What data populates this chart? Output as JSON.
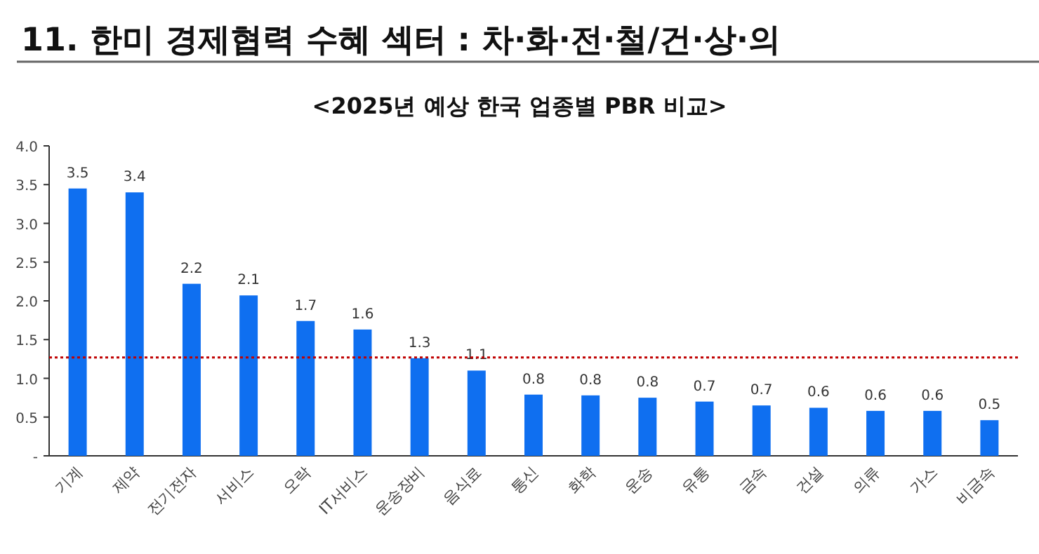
{
  "chart_data": {
    "type": "bar",
    "title": "11. 한미 경제협력 수혜 섹터 : 차·화·전·철/건·상·의",
    "subtitle": "<2025년 예상 한국 업종별 PBR 비교>",
    "categories": [
      "기계",
      "제약",
      "전기전자",
      "서비스",
      "오락",
      "IT서비스",
      "운송장비",
      "음식료",
      "통신",
      "화학",
      "운송",
      "유통",
      "금속",
      "건설",
      "의류",
      "가스",
      "비금속"
    ],
    "values": [
      3.45,
      3.4,
      2.22,
      2.07,
      1.74,
      1.63,
      1.26,
      1.1,
      0.79,
      0.78,
      0.75,
      0.7,
      0.65,
      0.62,
      0.58,
      0.58,
      0.46
    ],
    "value_labels": [
      "3.5",
      "3.4",
      "2.2",
      "2.1",
      "1.7",
      "1.6",
      "1.3",
      "1.1",
      "0.8",
      "0.8",
      "0.8",
      "0.7",
      "0.7",
      "0.6",
      "0.6",
      "0.6",
      "0.5"
    ],
    "color": "#0f6ff0",
    "ylim": [
      0,
      4
    ],
    "yticks": [
      {
        "value": 0,
        "label": "-"
      },
      {
        "value": 0.5,
        "label": "0.5"
      },
      {
        "value": 1,
        "label": "1.0"
      },
      {
        "value": 1.5,
        "label": "1.5"
      },
      {
        "value": 2,
        "label": "2.0"
      },
      {
        "value": 2.5,
        "label": "2.5"
      },
      {
        "value": 3,
        "label": "3.0"
      },
      {
        "value": 3.5,
        "label": "3.5"
      },
      {
        "value": 4,
        "label": "4.0"
      }
    ],
    "ref_lines": [
      {
        "axis": "y",
        "value": 1.27,
        "color": "#c00000",
        "line_style": "dotted"
      }
    ]
  }
}
